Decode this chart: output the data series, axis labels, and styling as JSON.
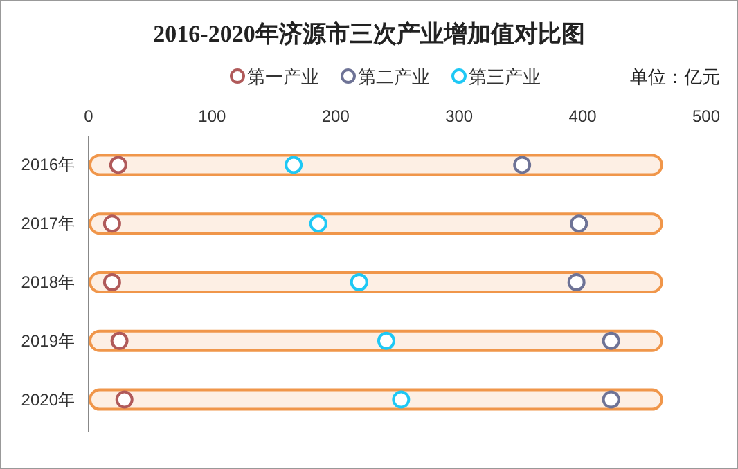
{
  "chart_data": {
    "type": "bar",
    "orientation": "horizontal",
    "title": "2016-2020年济源市三次产业增加值对比图",
    "categories": [
      "2016年",
      "2017年",
      "2018年",
      "2019年",
      "2020年"
    ],
    "series": [
      {
        "color": "#f0964a",
        "values": [
          464,
          464,
          464,
          464,
          464
        ]
      },
      {
        "type": "scatter",
        "name": "第一产业",
        "color": "#b05a5a",
        "values": [
          24,
          19,
          19,
          25,
          29
        ]
      },
      {
        "type": "scatter",
        "name": "第二产业",
        "color": "#6e7396",
        "values": [
          351,
          397,
          395,
          423,
          423
        ]
      },
      {
        "type": "scatter",
        "name": "第三产业",
        "color": "#1ec8f5",
        "values": [
          166,
          186,
          219,
          241,
          253
        ]
      }
    ],
    "xlim": [
      0,
      500
    ],
    "xticks": [
      0,
      100,
      200,
      300,
      400,
      500
    ],
    "marker": "circle",
    "legend": "top",
    "annotations": [
      "单位：亿元"
    ]
  }
}
